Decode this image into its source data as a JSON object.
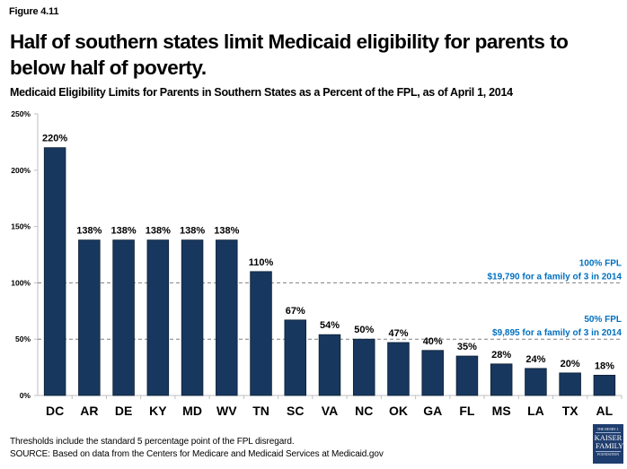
{
  "figure_label": "Figure 4.11",
  "headline": "Half of southern states limit Medicaid eligibility for parents to below half of poverty.",
  "chart_data": {
    "type": "bar",
    "title": "Medicaid Eligibility Limits for Parents in Southern States as a Percent of the FPL, as of April 1, 2014",
    "xlabel": "",
    "ylabel": "",
    "categories": [
      "DC",
      "AR",
      "DE",
      "KY",
      "MD",
      "WV",
      "TN",
      "SC",
      "VA",
      "NC",
      "OK",
      "GA",
      "FL",
      "MS",
      "LA",
      "TX",
      "AL"
    ],
    "values": [
      220,
      138,
      138,
      138,
      138,
      138,
      110,
      67,
      54,
      50,
      47,
      40,
      35,
      28,
      24,
      20,
      18
    ],
    "data_labels": [
      "220%",
      "138%",
      "138%",
      "138%",
      "138%",
      "138%",
      "110%",
      "67%",
      "54%",
      "50%",
      "47%",
      "40%",
      "35%",
      "28%",
      "24%",
      "20%",
      "18%"
    ],
    "ylim": [
      0,
      250
    ],
    "yticks": [
      0,
      50,
      100,
      150,
      200,
      250
    ],
    "ytick_labels": [
      "0%",
      "50%",
      "100%",
      "150%",
      "200%",
      "250%"
    ],
    "grid": false,
    "legend": null,
    "bar_color": "#17375e",
    "reference_lines": [
      {
        "value": 100,
        "label_line1": "100% FPL",
        "label_line2": "$19,790 for a family of 3 in 2014",
        "color": "#0070c0",
        "style": "dashed"
      },
      {
        "value": 50,
        "label_line1": "50% FPL",
        "label_line2": "$9,895 for a family of 3 in 2014",
        "color": "#0070c0",
        "style": "dashed"
      }
    ]
  },
  "footnotes": {
    "note": "Thresholds include the standard 5 percentage point of the FPL disregard.",
    "source": "SOURCE: Based on data from the Centers for Medicare and Medicaid Services at Medicaid.gov"
  },
  "logo": {
    "line1": "THE HENRY J.",
    "line2": "KAISER",
    "line3": "FAMILY",
    "line4": "FOUNDATION"
  }
}
